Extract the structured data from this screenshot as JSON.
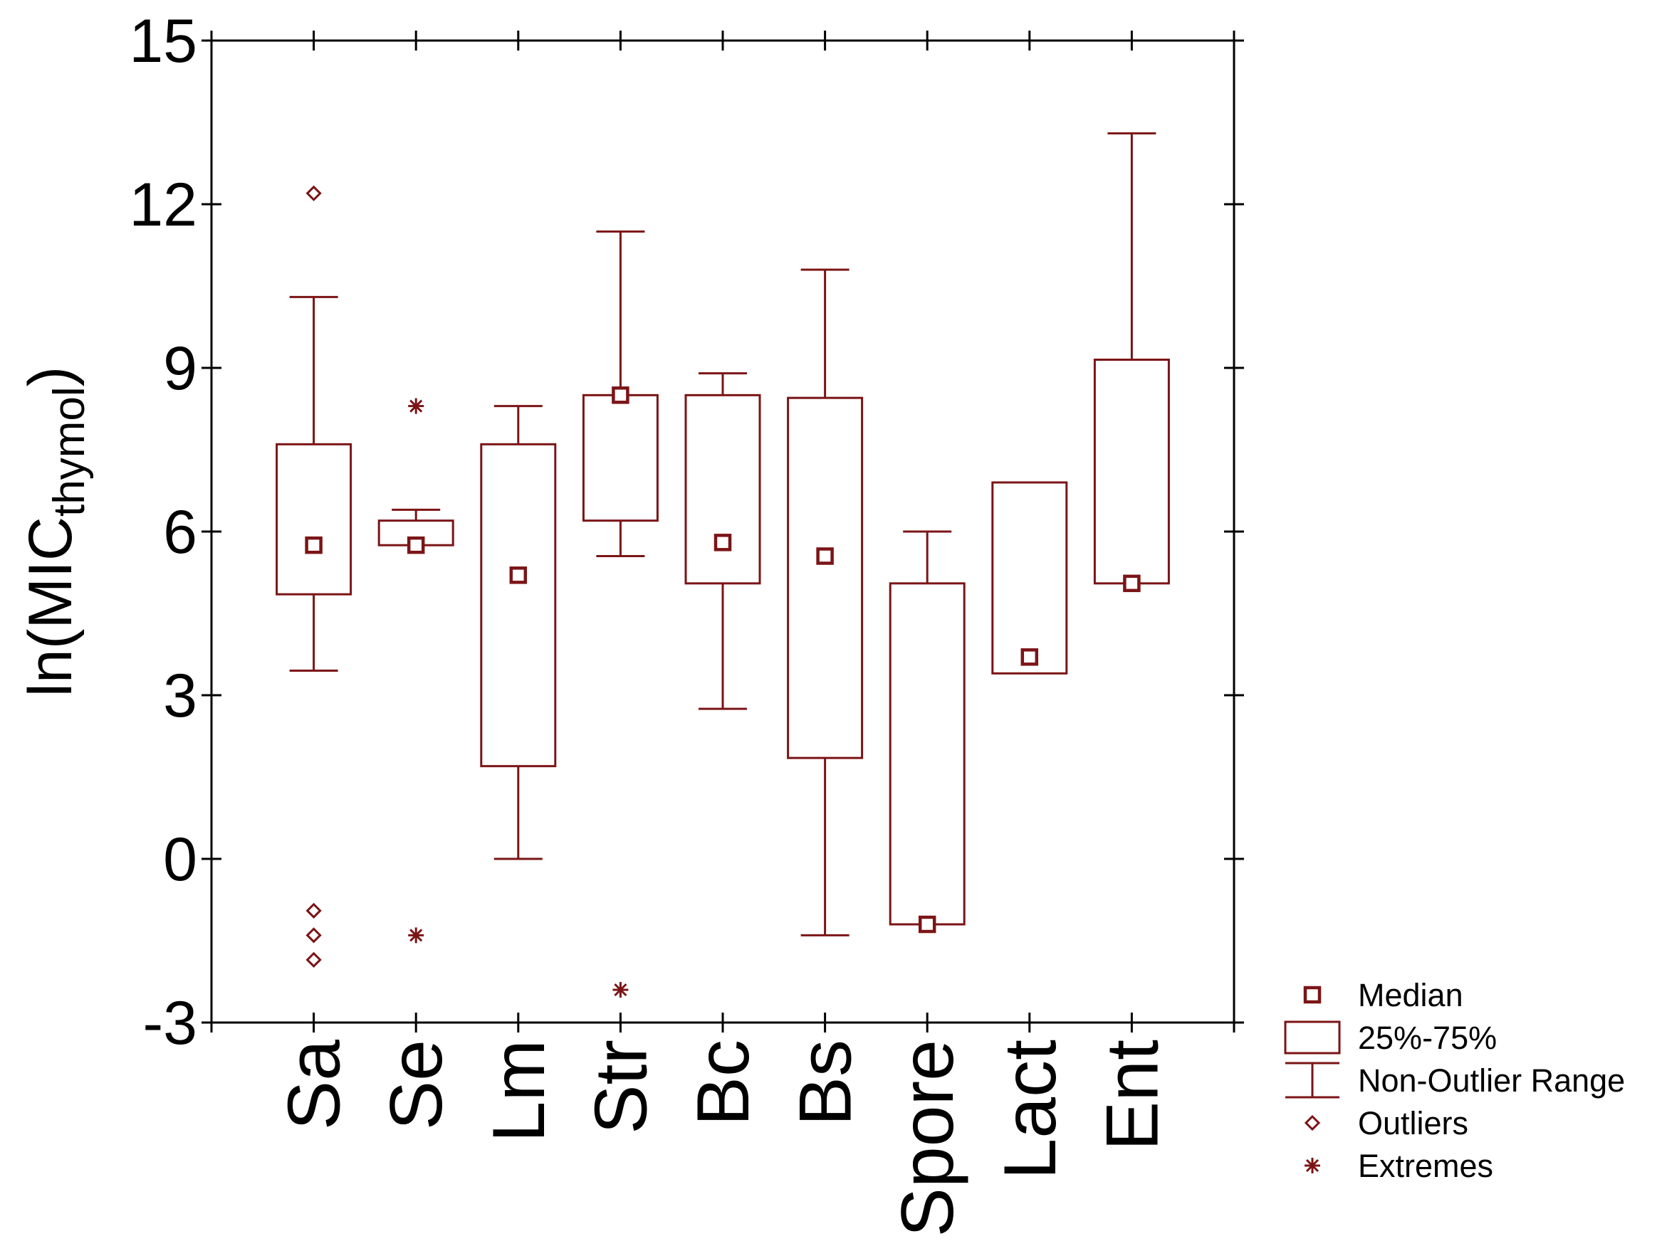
{
  "colors": {
    "series": "#7b1416",
    "axis": "#000000"
  },
  "chart_data": {
    "type": "boxplot",
    "title": "",
    "xlabel": "",
    "ylabel": {
      "main": "ln(MIC",
      "subscript": "thymol",
      "close": ")"
    },
    "ylim": [
      -3,
      15
    ],
    "yticks": [
      -3,
      0,
      3,
      6,
      9,
      12,
      15
    ],
    "ytick_labels": [
      "-3",
      "0",
      "3",
      "6",
      "9",
      "12",
      "15"
    ],
    "categories": [
      "Sa",
      "Se",
      "Lm",
      "Str",
      "Bc",
      "Bs",
      "Spore",
      "Lact",
      "Ent"
    ],
    "boxes": [
      {
        "category": "Sa",
        "q1": 4.85,
        "q3": 7.6,
        "median": 5.75,
        "whisker_low": 3.45,
        "whisker_high": 10.3,
        "outliers": [
          12.2,
          -0.95,
          -1.4,
          -1.85
        ],
        "extremes": []
      },
      {
        "category": "Se",
        "q1": 5.75,
        "q3": 6.2,
        "median": 5.75,
        "whisker_low": 5.75,
        "whisker_high": 6.4,
        "outliers": [],
        "extremes": [
          8.3,
          -1.4
        ]
      },
      {
        "category": "Lm",
        "q1": 1.7,
        "q3": 7.6,
        "median": 5.2,
        "whisker_low": 0.0,
        "whisker_high": 8.3,
        "outliers": [],
        "extremes": []
      },
      {
        "category": "Str",
        "q1": 6.2,
        "q3": 8.5,
        "median": 8.5,
        "whisker_low": 5.55,
        "whisker_high": 11.5,
        "outliers": [],
        "extremes": [
          -2.4
        ]
      },
      {
        "category": "Bc",
        "q1": 5.05,
        "q3": 8.5,
        "median": 5.8,
        "whisker_low": 2.75,
        "whisker_high": 8.9,
        "outliers": [],
        "extremes": []
      },
      {
        "category": "Bs",
        "q1": 1.85,
        "q3": 8.45,
        "median": 5.55,
        "whisker_low": -1.4,
        "whisker_high": 10.8,
        "outliers": [],
        "extremes": []
      },
      {
        "category": "Spore",
        "q1": -1.2,
        "q3": 5.05,
        "median": -1.2,
        "whisker_low": -1.2,
        "whisker_high": 6.0,
        "outliers": [],
        "extremes": []
      },
      {
        "category": "Lact",
        "q1": 3.4,
        "q3": 6.9,
        "median": 3.7,
        "whisker_low": 3.4,
        "whisker_high": 6.9,
        "outliers": [],
        "extremes": []
      },
      {
        "category": "Ent",
        "q1": 5.05,
        "q3": 9.15,
        "median": 5.05,
        "whisker_low": 5.05,
        "whisker_high": 13.3,
        "outliers": [],
        "extremes": []
      }
    ],
    "legend": {
      "position": "bottom-right",
      "items": [
        {
          "key": "median",
          "label": "Median"
        },
        {
          "key": "box",
          "label": "25%-75%"
        },
        {
          "key": "range",
          "label": "Non-Outlier Range"
        },
        {
          "key": "outliers",
          "label": "Outliers"
        },
        {
          "key": "extremes",
          "label": "Extremes"
        }
      ]
    }
  }
}
